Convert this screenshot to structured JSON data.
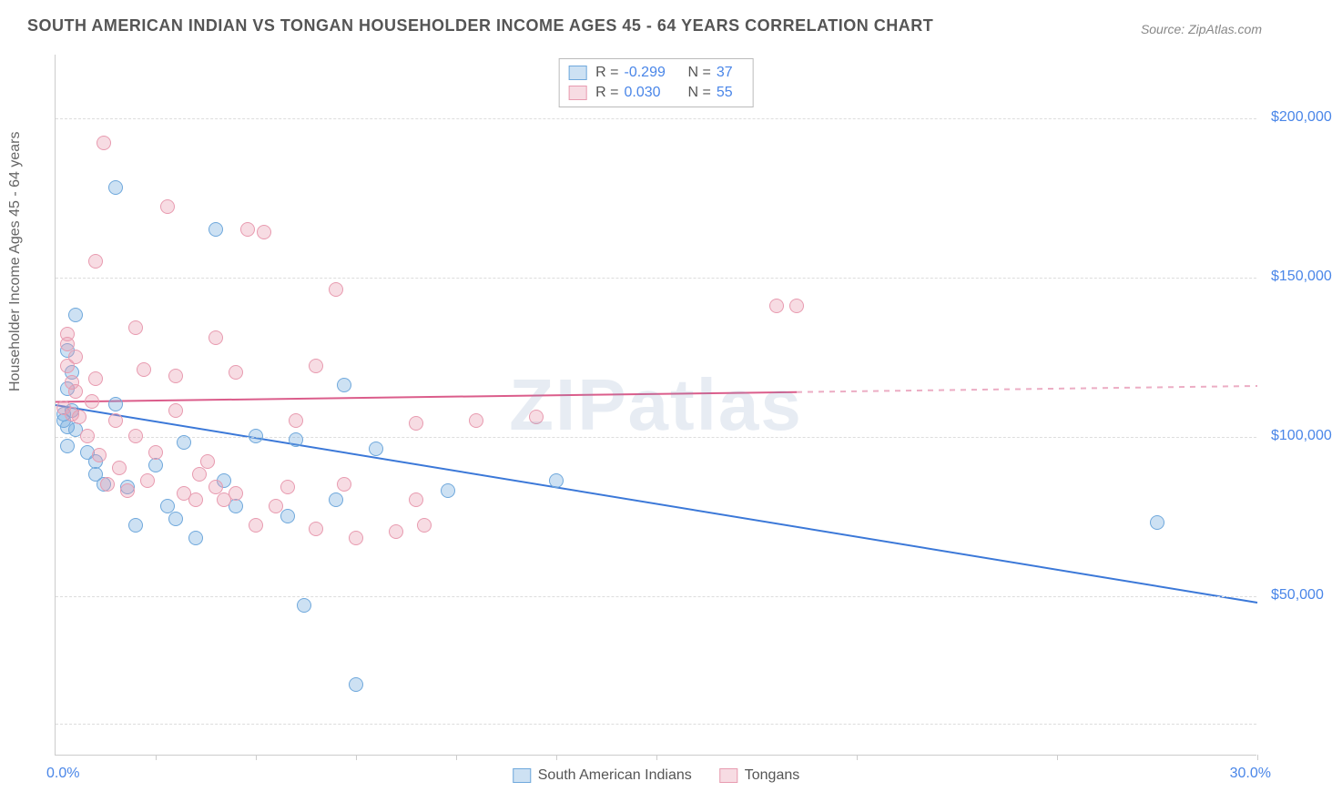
{
  "title": "SOUTH AMERICAN INDIAN VS TONGAN HOUSEHOLDER INCOME AGES 45 - 64 YEARS CORRELATION CHART",
  "source": "Source: ZipAtlas.com",
  "ylabel": "Householder Income Ages 45 - 64 years",
  "watermark": "ZIPatlas",
  "chart": {
    "type": "scatter",
    "background_color": "#ffffff",
    "grid_color": "#dddddd",
    "grid_dash": "4,4",
    "axis_color": "#cccccc",
    "title_color": "#555555",
    "title_fontsize": 18,
    "label_fontsize": 16,
    "tick_fontsize": 16,
    "marker_radius": 8,
    "marker_fill_opacity": 0.35,
    "marker_stroke_width": 1.5,
    "trend_line_width": 2,
    "xlim": [
      0,
      30
    ],
    "ylim": [
      0,
      220000
    ],
    "xticks_minor": [
      2.5,
      5,
      7.5,
      10,
      12.5,
      15,
      20,
      25,
      30
    ],
    "xtick_labels": [
      {
        "x": 0,
        "label": "0.0%",
        "color": "#4a86e8"
      },
      {
        "x": 30,
        "label": "30.0%",
        "color": "#4a86e8"
      }
    ],
    "yticks": [
      {
        "y": 50000,
        "label": "$50,000",
        "color": "#4a86e8"
      },
      {
        "y": 100000,
        "label": "$100,000",
        "color": "#4a86e8"
      },
      {
        "y": 150000,
        "label": "$150,000",
        "color": "#4a86e8"
      },
      {
        "y": 200000,
        "label": "$200,000",
        "color": "#4a86e8"
      }
    ],
    "grid_y": [
      10000,
      50000,
      100000,
      150000,
      200000
    ]
  },
  "series": [
    {
      "name": "South American Indians",
      "color_stroke": "#6fa8dc",
      "color_fill": "rgba(111,168,220,0.35)",
      "trend_color": "#3b78d8",
      "stats": {
        "R": "-0.299",
        "N": "37"
      },
      "trend": {
        "x1": 0,
        "y1": 110000,
        "x2": 30,
        "y2": 48000,
        "solid_until_x": 30
      },
      "points": [
        {
          "x": 0.2,
          "y": 107000
        },
        {
          "x": 0.2,
          "y": 105000
        },
        {
          "x": 0.3,
          "y": 103000
        },
        {
          "x": 0.3,
          "y": 127000
        },
        {
          "x": 0.3,
          "y": 115000
        },
        {
          "x": 0.3,
          "y": 97000
        },
        {
          "x": 0.4,
          "y": 120000
        },
        {
          "x": 0.4,
          "y": 108000
        },
        {
          "x": 0.5,
          "y": 138000
        },
        {
          "x": 0.5,
          "y": 102000
        },
        {
          "x": 0.8,
          "y": 95000
        },
        {
          "x": 1.0,
          "y": 92000
        },
        {
          "x": 1.0,
          "y": 88000
        },
        {
          "x": 1.2,
          "y": 85000
        },
        {
          "x": 1.5,
          "y": 178000
        },
        {
          "x": 1.5,
          "y": 110000
        },
        {
          "x": 1.8,
          "y": 84000
        },
        {
          "x": 2.0,
          "y": 72000
        },
        {
          "x": 2.5,
          "y": 91000
        },
        {
          "x": 2.8,
          "y": 78000
        },
        {
          "x": 3.0,
          "y": 74000
        },
        {
          "x": 3.2,
          "y": 98000
        },
        {
          "x": 3.5,
          "y": 68000
        },
        {
          "x": 4.0,
          "y": 165000
        },
        {
          "x": 4.2,
          "y": 86000
        },
        {
          "x": 4.5,
          "y": 78000
        },
        {
          "x": 5.0,
          "y": 100000
        },
        {
          "x": 5.8,
          "y": 75000
        },
        {
          "x": 6.0,
          "y": 99000
        },
        {
          "x": 6.2,
          "y": 47000
        },
        {
          "x": 7.0,
          "y": 80000
        },
        {
          "x": 7.2,
          "y": 116000
        },
        {
          "x": 7.5,
          "y": 22000
        },
        {
          "x": 8.0,
          "y": 96000
        },
        {
          "x": 9.8,
          "y": 83000
        },
        {
          "x": 12.5,
          "y": 86000
        },
        {
          "x": 27.5,
          "y": 73000
        }
      ]
    },
    {
      "name": "Tongans",
      "color_stroke": "#e89bb0",
      "color_fill": "rgba(232,155,176,0.35)",
      "trend_color": "#db5d8b",
      "stats": {
        "R": "0.030",
        "N": "55"
      },
      "trend": {
        "x1": 0,
        "y1": 111000,
        "x2": 30,
        "y2": 116000,
        "solid_until_x": 18.5
      },
      "points": [
        {
          "x": 0.2,
          "y": 109000
        },
        {
          "x": 0.3,
          "y": 122000
        },
        {
          "x": 0.3,
          "y": 129000
        },
        {
          "x": 0.4,
          "y": 107000
        },
        {
          "x": 0.4,
          "y": 117000
        },
        {
          "x": 0.5,
          "y": 125000
        },
        {
          "x": 0.5,
          "y": 114000
        },
        {
          "x": 0.6,
          "y": 106000
        },
        {
          "x": 0.8,
          "y": 100000
        },
        {
          "x": 0.9,
          "y": 111000
        },
        {
          "x": 1.0,
          "y": 155000
        },
        {
          "x": 1.0,
          "y": 118000
        },
        {
          "x": 1.1,
          "y": 94000
        },
        {
          "x": 1.2,
          "y": 192000
        },
        {
          "x": 1.3,
          "y": 85000
        },
        {
          "x": 1.5,
          "y": 105000
        },
        {
          "x": 1.6,
          "y": 90000
        },
        {
          "x": 1.8,
          "y": 83000
        },
        {
          "x": 2.0,
          "y": 134000
        },
        {
          "x": 2.0,
          "y": 100000
        },
        {
          "x": 2.2,
          "y": 121000
        },
        {
          "x": 2.3,
          "y": 86000
        },
        {
          "x": 2.5,
          "y": 95000
        },
        {
          "x": 2.8,
          "y": 172000
        },
        {
          "x": 3.0,
          "y": 108000
        },
        {
          "x": 3.0,
          "y": 119000
        },
        {
          "x": 3.2,
          "y": 82000
        },
        {
          "x": 3.5,
          "y": 80000
        },
        {
          "x": 3.6,
          "y": 88000
        },
        {
          "x": 3.8,
          "y": 92000
        },
        {
          "x": 4.0,
          "y": 131000
        },
        {
          "x": 4.0,
          "y": 84000
        },
        {
          "x": 4.2,
          "y": 80000
        },
        {
          "x": 4.5,
          "y": 82000
        },
        {
          "x": 4.5,
          "y": 120000
        },
        {
          "x": 4.8,
          "y": 165000
        },
        {
          "x": 5.0,
          "y": 72000
        },
        {
          "x": 5.2,
          "y": 164000
        },
        {
          "x": 5.5,
          "y": 78000
        },
        {
          "x": 5.8,
          "y": 84000
        },
        {
          "x": 6.0,
          "y": 105000
        },
        {
          "x": 6.5,
          "y": 122000
        },
        {
          "x": 6.5,
          "y": 71000
        },
        {
          "x": 7.0,
          "y": 146000
        },
        {
          "x": 7.2,
          "y": 85000
        },
        {
          "x": 7.5,
          "y": 68000
        },
        {
          "x": 8.5,
          "y": 70000
        },
        {
          "x": 9.0,
          "y": 104000
        },
        {
          "x": 9.0,
          "y": 80000
        },
        {
          "x": 9.2,
          "y": 72000
        },
        {
          "x": 10.5,
          "y": 105000
        },
        {
          "x": 12.0,
          "y": 106000
        },
        {
          "x": 18.0,
          "y": 141000
        },
        {
          "x": 18.5,
          "y": 141000
        },
        {
          "x": 0.3,
          "y": 132000
        }
      ]
    }
  ],
  "legend_top": {
    "r_label": "R =",
    "n_label": "N ="
  },
  "legend_bottom": [
    {
      "label": "South American Indians",
      "color_stroke": "#6fa8dc",
      "color_fill": "rgba(111,168,220,0.35)"
    },
    {
      "label": "Tongans",
      "color_stroke": "#e89bb0",
      "color_fill": "rgba(232,155,176,0.35)"
    }
  ]
}
